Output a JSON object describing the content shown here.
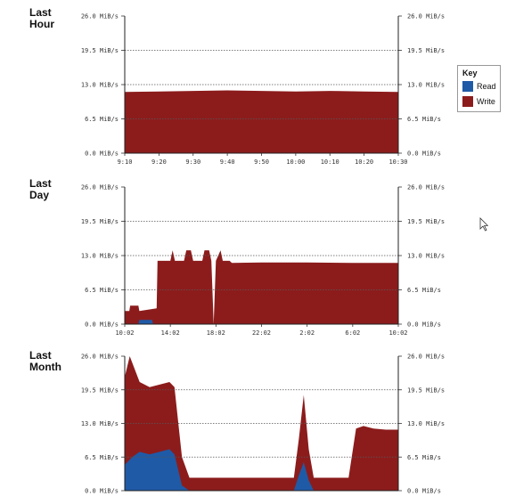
{
  "labels": {
    "hour": "Last\nHour",
    "day": "Last\nDay",
    "month": "Last\nMonth"
  },
  "key": {
    "title": "Key",
    "read": "Read",
    "write": "Write"
  },
  "colors": {
    "read": "#1f5aa6",
    "write": "#8c1c1c",
    "grid": "#555555"
  },
  "chart_data": [
    {
      "type": "area",
      "title": "Last Hour",
      "y_ticks": [
        "0.0 MiB/s",
        "6.5 MiB/s",
        "13.0 MiB/s",
        "19.5 MiB/s",
        "26.0 MiB/s"
      ],
      "ylim": [
        0,
        26
      ],
      "x_ticks": [
        "9:10",
        "9:20",
        "9:30",
        "9:40",
        "9:50",
        "10:00",
        "10:10",
        "10:20",
        "10:30"
      ],
      "grid": true,
      "series": [
        {
          "name": "Write",
          "x": [
            0,
            1,
            2,
            3,
            4,
            5,
            6,
            7,
            8
          ],
          "values": [
            11.6,
            11.7,
            11.8,
            11.9,
            11.8,
            11.7,
            11.8,
            11.7,
            11.6
          ]
        },
        {
          "name": "Read",
          "x": [
            0,
            8
          ],
          "values": [
            0,
            0
          ]
        }
      ]
    },
    {
      "type": "area",
      "title": "Last Day",
      "y_ticks": [
        "0.0 MiB/s",
        "6.5 MiB/s",
        "13.0 MiB/s",
        "19.5 MiB/s",
        "26.0 MiB/s"
      ],
      "ylim": [
        0,
        26
      ],
      "x_ticks": [
        "10:02",
        "14:02",
        "18:02",
        "22:02",
        "2:02",
        "6:02",
        "10:02"
      ],
      "grid": true,
      "series": [
        {
          "name": "Write",
          "x": [
            0,
            0.1,
            0.12,
            0.3,
            0.32,
            0.7,
            0.72,
            1.0,
            1.05,
            1.1,
            1.3,
            1.35,
            1.45,
            1.5,
            1.7,
            1.75,
            1.85,
            1.9,
            1.95,
            2.0,
            2.1,
            2.15,
            2.3,
            2.35,
            3,
            4,
            5,
            6
          ],
          "values": [
            2.5,
            2.5,
            3.5,
            3.5,
            2.5,
            3.0,
            12.0,
            12.0,
            14.0,
            12.0,
            12.0,
            14.0,
            14.0,
            12.0,
            12.0,
            14.0,
            14.0,
            12.0,
            0,
            12.0,
            14.0,
            12.0,
            12.0,
            11.6,
            11.7,
            11.7,
            11.6,
            11.6
          ]
        },
        {
          "name": "Read",
          "x": [
            0,
            0.3,
            0.32,
            0.6,
            0.62,
            6
          ],
          "values": [
            0,
            0,
            0.8,
            0.8,
            0,
            0
          ]
        }
      ]
    },
    {
      "type": "area",
      "title": "Last Month",
      "y_ticks": [
        "0.0 MiB/s",
        "6.5 MiB/s",
        "13.0 MiB/s",
        "19.5 MiB/s",
        "26.0 MiB/s"
      ],
      "ylim": [
        0,
        26
      ],
      "x_ticks": [],
      "grid": true,
      "series": [
        {
          "name": "Write",
          "x": [
            0,
            0.2,
            0.6,
            1.0,
            1.4,
            1.8,
            2.0,
            2.3,
            2.6,
            3.0,
            3.5,
            4.0,
            5.0,
            6.0,
            6.8,
            7.0,
            7.2,
            7.4,
            7.6,
            8.0,
            9.0,
            9.3,
            9.6,
            10.0,
            10.5,
            11.0
          ],
          "values": [
            22.0,
            26.0,
            21.0,
            20.0,
            20.5,
            21.0,
            20.0,
            6.5,
            2.5,
            2.5,
            2.5,
            2.5,
            2.5,
            2.5,
            2.5,
            10.0,
            18.5,
            8.0,
            2.5,
            2.5,
            2.5,
            12.0,
            12.5,
            12.0,
            11.8,
            11.8
          ]
        },
        {
          "name": "Read",
          "x": [
            0,
            0.3,
            0.6,
            1.0,
            1.4,
            1.8,
            2.0,
            2.3,
            2.6,
            6.8,
            7.0,
            7.2,
            7.4,
            7.6,
            11.0
          ],
          "values": [
            5.0,
            6.5,
            7.5,
            7.0,
            7.5,
            8.0,
            7.0,
            1.0,
            0,
            0,
            3.0,
            5.5,
            2.0,
            0,
            0
          ]
        }
      ]
    }
  ]
}
